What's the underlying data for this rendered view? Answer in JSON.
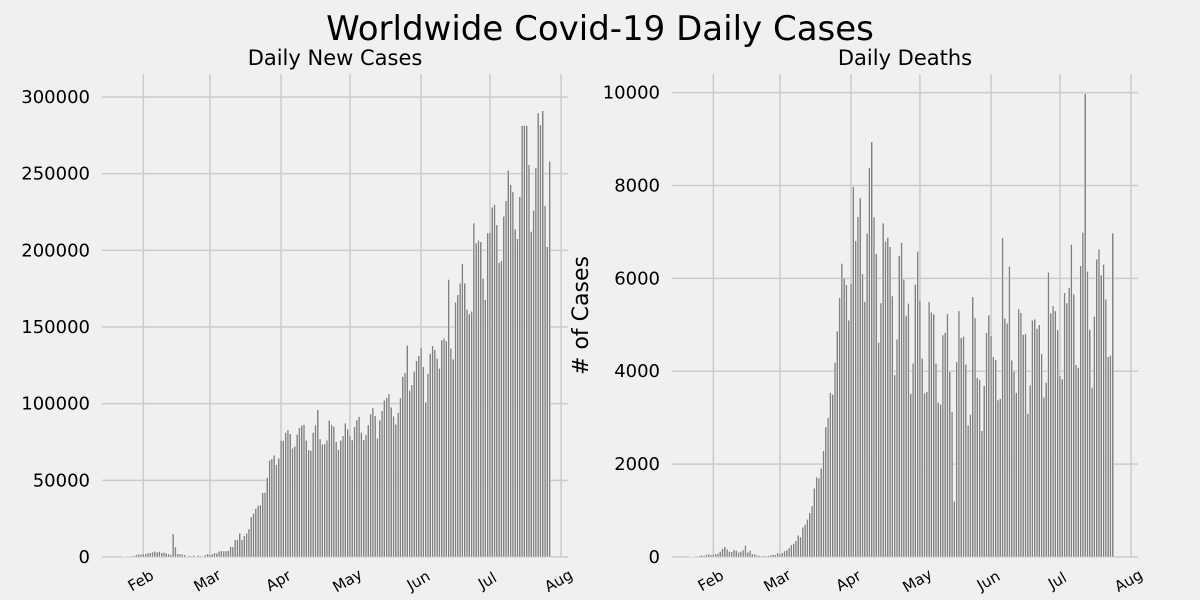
{
  "figure": {
    "title": "Worldwide Covid-19 Daily Cases",
    "background": "#f0f0f0",
    "plot_background": "#f0f0f0",
    "bar_color": "#808080",
    "bar_edge_color": "#ffffff",
    "grid_color": "#cbcbcb"
  },
  "chart_data": [
    {
      "type": "bar",
      "title": "Daily New Cases",
      "xlabel": "",
      "ylabel": "",
      "x_type": "date",
      "x_start": "2020-01-22",
      "xlim": [
        "2020-01-14",
        "2020-08-04"
      ],
      "ylim": [
        0,
        315000
      ],
      "grid": true,
      "x_ticks": [
        {
          "date": "2020-02-01",
          "label": "Feb"
        },
        {
          "date": "2020-03-01",
          "label": "Mar"
        },
        {
          "date": "2020-04-01",
          "label": "Apr"
        },
        {
          "date": "2020-05-01",
          "label": "May"
        },
        {
          "date": "2020-06-01",
          "label": "Jun"
        },
        {
          "date": "2020-07-01",
          "label": "Jul"
        },
        {
          "date": "2020-08-01",
          "label": "Aug"
        }
      ],
      "y_ticks": [
        0,
        50000,
        100000,
        150000,
        200000,
        250000,
        300000
      ],
      "y_tick_labels": [
        "0",
        "50000",
        "100000",
        "150000",
        "200000",
        "250000",
        "300000"
      ],
      "values": [
        0,
        100,
        260,
        430,
        500,
        680,
        810,
        1600,
        1750,
        1760,
        2000,
        2100,
        2610,
        2820,
        3240,
        3700,
        3200,
        3550,
        2730,
        3030,
        2460,
        2000,
        1500,
        15100,
        6500,
        2100,
        2000,
        1800,
        1400,
        500,
        900,
        600,
        1000,
        300,
        1200,
        600,
        400,
        1300,
        2100,
        1600,
        1900,
        2800,
        2400,
        3800,
        4100,
        3900,
        3900,
        4100,
        6800,
        6600,
        11200,
        11400,
        15500,
        11200,
        13800,
        15500,
        18300,
        26100,
        28400,
        31600,
        33600,
        33900,
        41900,
        42100,
        51800,
        63100,
        64100,
        66400,
        60300,
        64400,
        76200,
        76000,
        81200,
        83000,
        80400,
        71000,
        72200,
        80000,
        84300,
        85700,
        86400,
        76200,
        69800,
        69500,
        81200,
        86100,
        96100,
        77000,
        73500,
        73700,
        76200,
        89200,
        86400,
        85100,
        75200,
        70000,
        76100,
        79100,
        87300,
        83400,
        79400,
        76300,
        84900,
        89400,
        91600,
        81300,
        76400,
        79800,
        86100,
        93300,
        97300,
        92100,
        77500,
        89300,
        95400,
        102300,
        103900,
        106400,
        97700,
        91900,
        86500,
        94200,
        103800,
        117700,
        120100,
        138000,
        108800,
        112300,
        121000,
        127900,
        131100,
        136700,
        124000,
        101000,
        119700,
        132700,
        137700,
        135100,
        129500,
        123000,
        141500,
        142700,
        140900,
        181000,
        136200,
        129000,
        166100,
        171000,
        178500,
        191200,
        178600,
        161500,
        158500,
        160200,
        217800,
        204800,
        206500,
        205600,
        181800,
        167900,
        211300,
        211700,
        228100,
        229900,
        216600,
        192000,
        193300,
        222200,
        232400,
        252300,
        242700,
        238300,
        213800,
        207600,
        235000,
        281300,
        281500,
        281400,
        255800,
        212300,
        226100,
        253900,
        289600,
        281800,
        291000,
        229200,
        202400,
        258100
      ]
    },
    {
      "type": "bar",
      "title": "Daily Deaths",
      "xlabel": "",
      "ylabel": "# of Cases",
      "x_type": "date",
      "x_start": "2020-01-22",
      "xlim": [
        "2020-01-14",
        "2020-08-04"
      ],
      "ylim": [
        0,
        10400
      ],
      "grid": true,
      "x_ticks": [
        {
          "date": "2020-02-01",
          "label": "Feb"
        },
        {
          "date": "2020-03-01",
          "label": "Mar"
        },
        {
          "date": "2020-04-01",
          "label": "Apr"
        },
        {
          "date": "2020-05-01",
          "label": "May"
        },
        {
          "date": "2020-06-01",
          "label": "Jun"
        },
        {
          "date": "2020-07-01",
          "label": "Jul"
        },
        {
          "date": "2020-08-01",
          "label": "Aug"
        }
      ],
      "y_ticks": [
        0,
        2000,
        4000,
        6000,
        8000,
        10000
      ],
      "y_tick_labels": [
        "0",
        "2000",
        "4000",
        "6000",
        "8000",
        "10000"
      ],
      "values": [
        10,
        8,
        15,
        20,
        25,
        40,
        30,
        55,
        60,
        45,
        60,
        65,
        75,
        120,
        180,
        220,
        170,
        120,
        110,
        160,
        140,
        100,
        120,
        150,
        250,
        100,
        140,
        70,
        60,
        40,
        30,
        20,
        25,
        20,
        30,
        40,
        55,
        50,
        90,
        70,
        90,
        130,
        150,
        200,
        260,
        290,
        350,
        470,
        430,
        640,
        700,
        810,
        950,
        1100,
        1480,
        1720,
        1700,
        1910,
        2290,
        2800,
        3000,
        3540,
        3500,
        4190,
        4860,
        5580,
        6320,
        6010,
        5860,
        5100,
        5890,
        7970,
        6810,
        7330,
        7730,
        6100,
        5500,
        6970,
        8380,
        8940,
        7320,
        6530,
        4620,
        5470,
        7190,
        6800,
        6880,
        6680,
        5620,
        3920,
        4690,
        6490,
        6770,
        5980,
        5200,
        5460,
        3520,
        4170,
        5870,
        6580,
        5530,
        4280,
        3530,
        3560,
        5500,
        5270,
        5230,
        4170,
        3330,
        3290,
        4780,
        4830,
        5240,
        4000,
        3130,
        1200,
        4200,
        5300,
        4720,
        4750,
        4150,
        2840,
        3070,
        5600,
        5150,
        3860,
        3820,
        2720,
        3690,
        4830,
        5210,
        4760,
        4310,
        4250,
        3380,
        3410,
        6870,
        5140,
        5030,
        6260,
        4240,
        4000,
        3540,
        5340,
        5260,
        4790,
        4810,
        3090,
        3700,
        5100,
        5120,
        4920,
        5000,
        4380,
        3440,
        3760,
        6130,
        5250,
        5410,
        5300,
        4890,
        3900,
        3830,
        5690,
        5470,
        5800,
        6730,
        5660,
        4140,
        4080,
        6270,
        6990,
        9980,
        6150,
        4900,
        3650,
        5180,
        6410,
        6630,
        6070,
        6300,
        5550,
        4310,
        4340,
        6970
      ]
    }
  ]
}
